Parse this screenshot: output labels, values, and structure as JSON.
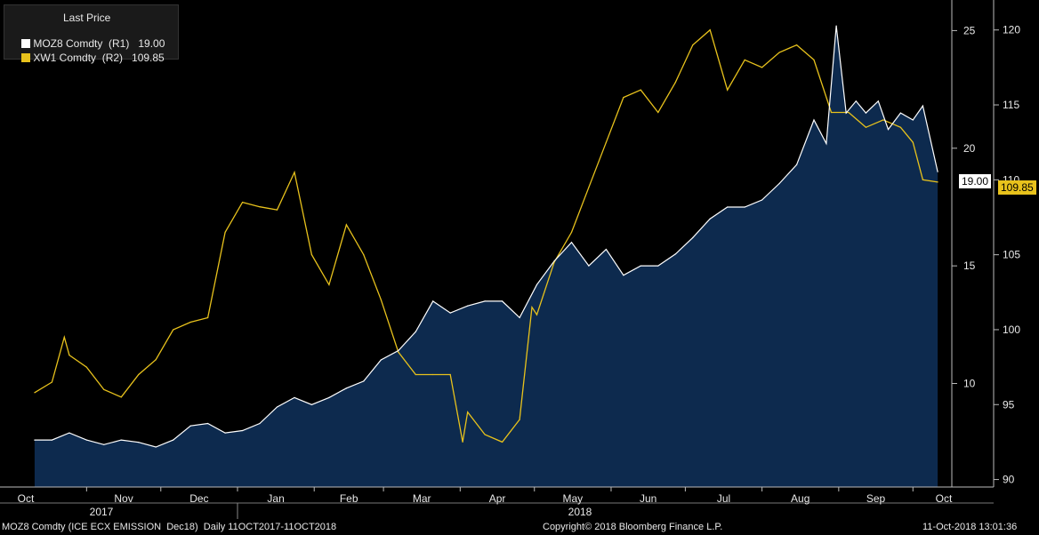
{
  "legend": {
    "title": "Last Price",
    "rows": [
      {
        "label": "MOZ8 Comdty  (R1)   19.00",
        "color": "#ffffff"
      },
      {
        "label": "XW1 Comdty  (R2)   109.85",
        "color": "#e8c21c"
      }
    ]
  },
  "footer": {
    "left": "MOZ8 Comdty (ICE ECX EMISSION  Dec18)  Daily 11OCT2017-11OCT2018",
    "center": "Copyright© 2018 Bloomberg Finance L.P.",
    "right": "11-Oct-2018 13:01:36"
  },
  "last_labels": {
    "r1": "19.00",
    "r2": "109.85"
  },
  "colors": {
    "area": "#0d2a4e",
    "r1_line": "#ffffff",
    "r2_line": "#e8c21c",
    "background": "#000000"
  },
  "chart_data": {
    "type": "area",
    "x_ticks": [
      "Oct",
      "Nov",
      "Dec",
      "Jan",
      "Feb",
      "Mar",
      "Apr",
      "May",
      "Jun",
      "Jul",
      "Aug",
      "Sep",
      "Oct"
    ],
    "year_labels": [
      "2017",
      "2018"
    ],
    "y_right1": {
      "ticks": [
        10,
        15,
        20,
        25
      ],
      "range": [
        5.6,
        26.3
      ]
    },
    "y_right2": {
      "ticks": [
        90,
        95,
        100,
        105,
        110,
        115,
        120
      ],
      "range": [
        89.5,
        122.0
      ]
    },
    "series": [
      {
        "name": "MOZ8 Comdty (R1)",
        "axis": "R1",
        "x": [
          "2017-10-11",
          "2017-10-18",
          "2017-10-25",
          "2017-11-01",
          "2017-11-08",
          "2017-11-15",
          "2017-11-22",
          "2017-11-29",
          "2017-12-06",
          "2017-12-13",
          "2017-12-20",
          "2017-12-27",
          "2018-01-03",
          "2018-01-10",
          "2018-01-17",
          "2018-01-24",
          "2018-01-31",
          "2018-02-07",
          "2018-02-14",
          "2018-02-21",
          "2018-02-28",
          "2018-03-07",
          "2018-03-14",
          "2018-03-21",
          "2018-03-28",
          "2018-04-04",
          "2018-04-11",
          "2018-04-18",
          "2018-04-25",
          "2018-05-02",
          "2018-05-09",
          "2018-05-16",
          "2018-05-23",
          "2018-05-30",
          "2018-06-06",
          "2018-06-13",
          "2018-06-20",
          "2018-06-27",
          "2018-07-04",
          "2018-07-11",
          "2018-07-18",
          "2018-07-25",
          "2018-08-01",
          "2018-08-08",
          "2018-08-15",
          "2018-08-22",
          "2018-08-27",
          "2018-08-31",
          "2018-09-04",
          "2018-09-08",
          "2018-09-12",
          "2018-09-17",
          "2018-09-21",
          "2018-09-26",
          "2018-10-01",
          "2018-10-05",
          "2018-10-11"
        ],
        "values": [
          7.6,
          7.6,
          7.9,
          7.6,
          7.4,
          7.6,
          7.5,
          7.3,
          7.6,
          8.2,
          8.3,
          7.9,
          8.0,
          8.3,
          9.0,
          9.4,
          9.1,
          9.4,
          9.8,
          10.1,
          11.0,
          11.4,
          12.2,
          13.5,
          13.0,
          13.3,
          13.5,
          13.5,
          12.8,
          14.2,
          15.2,
          16.0,
          15.0,
          15.7,
          14.6,
          15.0,
          15.0,
          15.5,
          16.2,
          17.0,
          17.5,
          17.5,
          17.8,
          18.5,
          19.3,
          21.2,
          20.2,
          25.2,
          21.5,
          22.0,
          21.5,
          22.0,
          20.8,
          21.5,
          21.2,
          21.8,
          19.0
        ]
      },
      {
        "name": "XW1 Comdty (R2)",
        "axis": "R2",
        "x": [
          "2017-10-11",
          "2017-10-18",
          "2017-10-23",
          "2017-10-25",
          "2017-11-01",
          "2017-11-08",
          "2017-11-15",
          "2017-11-22",
          "2017-11-29",
          "2017-12-06",
          "2017-12-13",
          "2017-12-20",
          "2017-12-27",
          "2018-01-03",
          "2018-01-10",
          "2018-01-17",
          "2018-01-24",
          "2018-01-31",
          "2018-02-07",
          "2018-02-14",
          "2018-02-21",
          "2018-02-28",
          "2018-03-07",
          "2018-03-14",
          "2018-03-21",
          "2018-03-28",
          "2018-04-02",
          "2018-04-04",
          "2018-04-11",
          "2018-04-18",
          "2018-04-25",
          "2018-04-30",
          "2018-05-02",
          "2018-05-09",
          "2018-05-16",
          "2018-05-23",
          "2018-05-30",
          "2018-06-06",
          "2018-06-13",
          "2018-06-20",
          "2018-06-27",
          "2018-07-04",
          "2018-07-11",
          "2018-07-18",
          "2018-07-25",
          "2018-08-01",
          "2018-08-08",
          "2018-08-15",
          "2018-08-22",
          "2018-08-29",
          "2018-09-05",
          "2018-09-12",
          "2018-09-19",
          "2018-09-26",
          "2018-10-01",
          "2018-10-05",
          "2018-10-11"
        ],
        "values": [
          95.8,
          96.5,
          99.5,
          98.3,
          97.5,
          96.0,
          95.5,
          97.0,
          98.0,
          100.0,
          100.5,
          100.8,
          106.5,
          108.5,
          108.2,
          108.0,
          110.5,
          105.0,
          103.0,
          107.0,
          105.0,
          102.0,
          98.5,
          97.0,
          97.0,
          97.0,
          92.5,
          94.5,
          93.0,
          92.5,
          94.0,
          101.5,
          101.0,
          104.5,
          106.5,
          109.5,
          112.5,
          115.5,
          116.0,
          114.5,
          116.5,
          119.0,
          120.0,
          116.0,
          118.0,
          117.5,
          118.5,
          119.0,
          118.0,
          114.5,
          114.5,
          113.5,
          114.0,
          113.5,
          112.5,
          110.0,
          109.85
        ]
      }
    ]
  }
}
